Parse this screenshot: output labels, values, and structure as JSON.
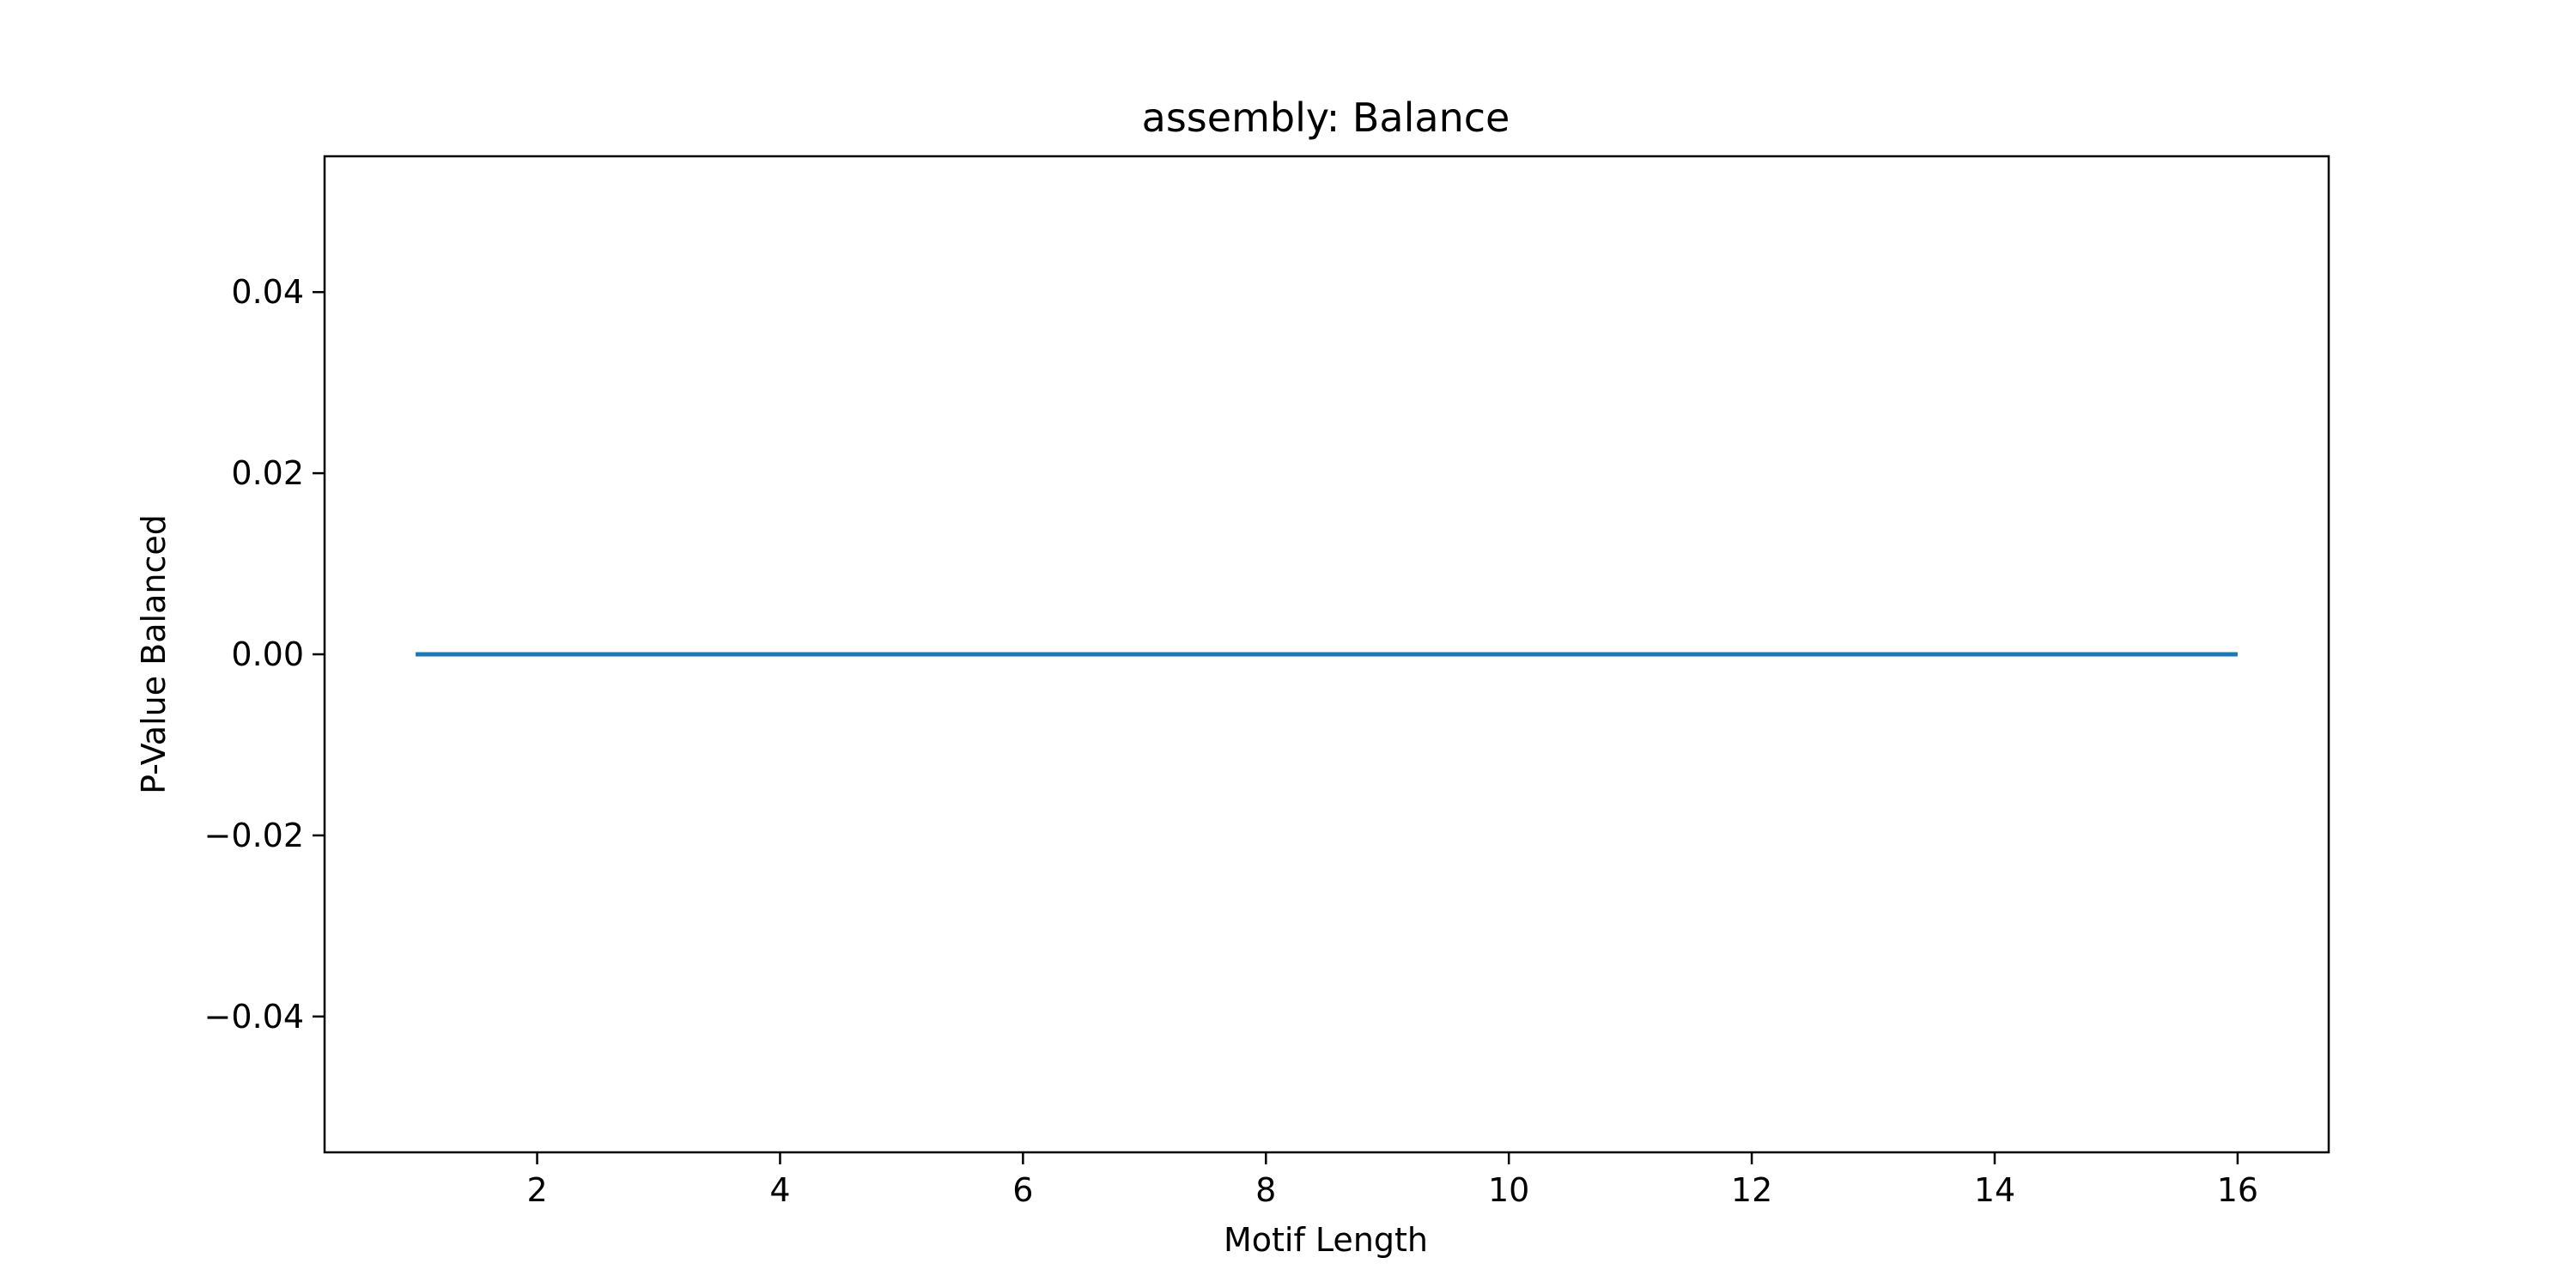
{
  "chart_data": {
    "type": "line",
    "title": "assembly: Balance",
    "xlabel": "Motif Length",
    "ylabel": "P-Value Balanced",
    "xlim": [
      0.25,
      16.75
    ],
    "ylim": [
      -0.055,
      0.055
    ],
    "x_ticks": [
      2,
      4,
      6,
      8,
      10,
      12,
      14,
      16
    ],
    "x_tick_labels": [
      "2",
      "4",
      "6",
      "8",
      "10",
      "12",
      "14",
      "16"
    ],
    "y_ticks": [
      -0.04,
      -0.02,
      0.0,
      0.02,
      0.04
    ],
    "y_tick_labels": [
      "−0.04",
      "−0.02",
      "0.00",
      "0.02",
      "0.04"
    ],
    "grid": false,
    "series": [
      {
        "name": "P-Value Balanced",
        "color": "#1f77b4",
        "x": [
          1,
          2,
          3,
          4,
          5,
          6,
          7,
          8,
          9,
          10,
          11,
          12,
          13,
          14,
          15,
          16
        ],
        "values": [
          0,
          0,
          0,
          0,
          0,
          0,
          0,
          0,
          0,
          0,
          0,
          0,
          0,
          0,
          0,
          0
        ]
      }
    ]
  }
}
